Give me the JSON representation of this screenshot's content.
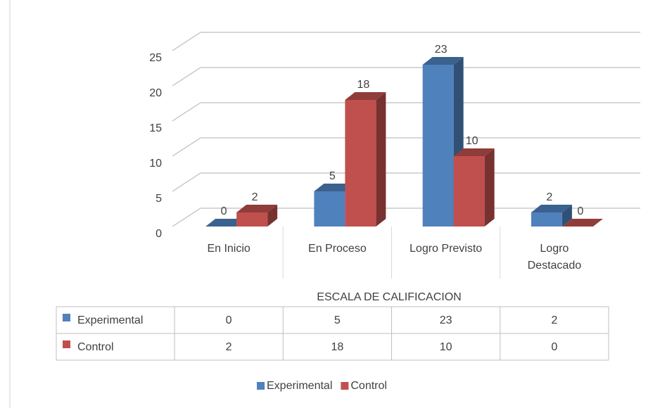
{
  "chart_data": {
    "type": "bar3d",
    "categories": [
      "En Inicio",
      "En Proceso",
      "Logro Previsto",
      "Logro Destacado"
    ],
    "series": [
      {
        "name": "Experimental",
        "color": "#4f81bd",
        "values": [
          0,
          5,
          23,
          2
        ]
      },
      {
        "name": "Control",
        "color": "#c0504d",
        "values": [
          2,
          18,
          10,
          0
        ]
      }
    ],
    "ylim": [
      0,
      25
    ],
    "yticks": [
      0,
      5,
      10,
      15,
      20,
      25
    ],
    "grid": true,
    "xlabel": "ESCALA DE CALIFICACION",
    "legend": "bottom",
    "data_table": true
  }
}
